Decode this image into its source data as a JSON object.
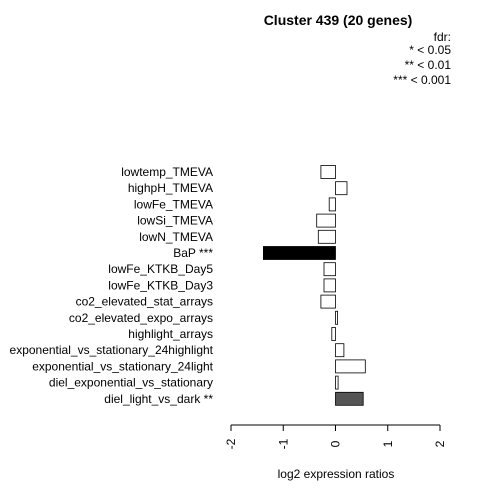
{
  "chart_data": {
    "type": "bar",
    "orientation": "horizontal",
    "title": "Cluster 439 (20 genes)",
    "xlabel": "log2 expression ratios",
    "ylabel": "",
    "xlim": [
      -2,
      2
    ],
    "xticks": [
      "-2",
      "-1",
      "0",
      "1",
      "2"
    ],
    "categories": [
      "lowtemp_TMEVA",
      "highpH_TMEVA",
      "lowFe_TMEVA",
      "lowSi_TMEVA",
      "lowN_TMEVA",
      "BaP ***",
      "lowFe_KTKB_Day5",
      "lowFe_KTKB_Day3",
      "co2_elevated_stat_arrays",
      "co2_elevated_expo_arrays",
      "highlight_arrays",
      "exponential_vs_stationary_24highlight",
      "exponential_vs_stationary_24light",
      "diel_exponential_vs_stationary",
      "diel_light_vs_dark **"
    ],
    "values": [
      -0.28,
      0.22,
      -0.12,
      -0.36,
      -0.33,
      -1.38,
      -0.22,
      -0.22,
      -0.28,
      0.04,
      -0.07,
      0.16,
      0.57,
      0.05,
      0.53
    ],
    "fills": [
      "#ffffff",
      "#ffffff",
      "#ffffff",
      "#ffffff",
      "#ffffff",
      "#000000",
      "#ffffff",
      "#ffffff",
      "#ffffff",
      "#ffffff",
      "#ffffff",
      "#ffffff",
      "#ffffff",
      "#ffffff",
      "#555555"
    ],
    "grid": false,
    "legend": {
      "placement": "top-right",
      "title": "fdr:",
      "entries": [
        "* < 0.05",
        "** < 0.01",
        "*** < 0.001"
      ]
    }
  }
}
